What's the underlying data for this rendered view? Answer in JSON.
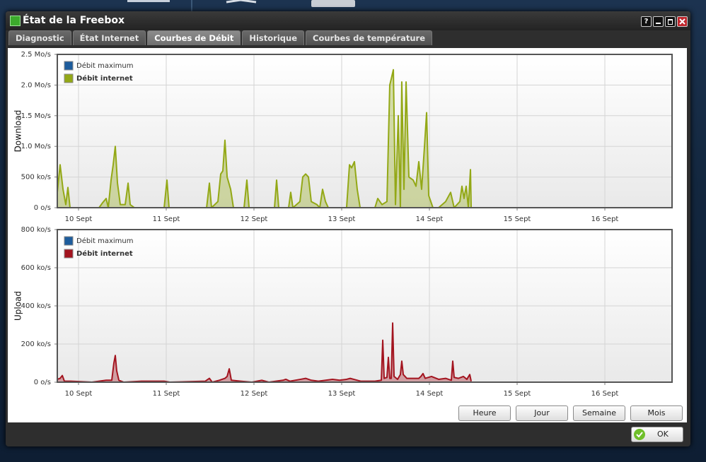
{
  "window": {
    "title": "État de la Freebox",
    "help": "?"
  },
  "tabs": [
    {
      "label": "Diagnostic",
      "active": false
    },
    {
      "label": "État Internet",
      "active": false
    },
    {
      "label": "Courbes de Débit",
      "active": true
    },
    {
      "label": "Historique",
      "active": false
    },
    {
      "label": "Courbes de température",
      "active": false
    }
  ],
  "buttons": [
    "Heure",
    "Jour",
    "Semaine",
    "Mois"
  ],
  "ok_button": "OK",
  "chart_data": [
    {
      "type": "area",
      "ylabel": "Download",
      "grid": true,
      "legend": "upper left",
      "xlim": [
        9.758,
        16.766
      ],
      "ylim": [
        0,
        2500
      ],
      "xticks": [
        {
          "value": 10,
          "label": "10 Sept"
        },
        {
          "value": 11,
          "label": "11 Sept"
        },
        {
          "value": 12,
          "label": "12 Sept"
        },
        {
          "value": 13,
          "label": "13 Sept"
        },
        {
          "value": 14,
          "label": "14 Sept"
        },
        {
          "value": 15,
          "label": "15 Sept"
        },
        {
          "value": 16,
          "label": "16 Sept"
        }
      ],
      "yticks": [
        {
          "value": 0,
          "label": "0 o/s"
        },
        {
          "value": 500,
          "label": "500 ko/s"
        },
        {
          "value": 1000,
          "label": "1.0 Mo/s"
        },
        {
          "value": 1500,
          "label": "1.5 Mo/s"
        },
        {
          "value": 2000,
          "label": "2.0 Mo/s"
        },
        {
          "value": 2500,
          "label": "2.5 Mo/s"
        }
      ],
      "x": [
        9.758,
        9.79,
        9.823,
        9.855,
        9.879,
        9.903,
        10.234,
        10.274,
        10.315,
        10.339,
        10.371,
        10.395,
        10.419,
        10.444,
        10.476,
        10.532,
        10.565,
        10.589,
        10.637,
        10.976,
        11.008,
        11.032,
        11.46,
        11.492,
        11.516,
        11.589,
        11.621,
        11.645,
        11.669,
        11.694,
        11.734,
        11.766,
        11.887,
        11.919,
        11.944,
        12.234,
        12.258,
        12.282,
        12.395,
        12.419,
        12.444,
        12.524,
        12.556,
        12.589,
        12.621,
        12.653,
        12.718,
        12.75,
        12.782,
        12.815,
        12.847,
        13.056,
        13.089,
        13.113,
        13.145,
        13.177,
        13.21,
        13.379,
        13.411,
        13.46,
        13.516,
        13.548,
        13.565,
        13.589,
        13.613,
        13.645,
        13.669,
        13.685,
        13.71,
        13.734,
        13.766,
        13.815,
        13.847,
        13.879,
        13.911,
        13.944,
        13.968,
        13.992,
        14.04,
        14.105,
        14.185,
        14.242,
        14.282,
        14.347,
        14.371,
        14.395,
        14.419,
        14.444,
        14.468,
        14.476
      ],
      "series": [
        {
          "name": "Débit maximum",
          "color": "#1d5c9c",
          "values": [
            null,
            null,
            null,
            null,
            null,
            null,
            null,
            null,
            null,
            null,
            null,
            null,
            null,
            null,
            null,
            null,
            null,
            null,
            null,
            null,
            null,
            null,
            null,
            null,
            null,
            null,
            null,
            null,
            null,
            null,
            null,
            null,
            null,
            null,
            null,
            null,
            null,
            null,
            null,
            null,
            null,
            null,
            null,
            null,
            null,
            null,
            null,
            null,
            null,
            null,
            null,
            null,
            null,
            null,
            null,
            null,
            null,
            null,
            null,
            null,
            null,
            null,
            null,
            null,
            null,
            null,
            null,
            null,
            null,
            null,
            null,
            null,
            null,
            null,
            null,
            null,
            null,
            null,
            null,
            null,
            null,
            null,
            null,
            null,
            null,
            null,
            null,
            null,
            null,
            null
          ]
        },
        {
          "name": "Débit internet",
          "color": "#93a816",
          "values": [
            250,
            700,
            300,
            50,
            330,
            0,
            0,
            80,
            150,
            0,
            450,
            700,
            1000,
            400,
            50,
            50,
            400,
            50,
            0,
            0,
            450,
            0,
            0,
            400,
            0,
            100,
            550,
            600,
            1100,
            500,
            300,
            0,
            0,
            450,
            0,
            0,
            450,
            0,
            0,
            250,
            0,
            100,
            500,
            550,
            500,
            100,
            50,
            0,
            300,
            100,
            0,
            0,
            700,
            650,
            750,
            300,
            0,
            0,
            150,
            50,
            100,
            2000,
            2100,
            2250,
            50,
            1500,
            0,
            2050,
            300,
            2050,
            500,
            450,
            350,
            750,
            300,
            1000,
            1550,
            200,
            0,
            0,
            100,
            250,
            0,
            100,
            350,
            150,
            350,
            0,
            620,
            0
          ]
        }
      ]
    },
    {
      "type": "area",
      "ylabel": "Upload",
      "grid": true,
      "legend": "upper left",
      "xlim": [
        9.758,
        16.766
      ],
      "ylim": [
        0,
        800
      ],
      "xticks": [
        {
          "value": 10,
          "label": "10 Sept"
        },
        {
          "value": 11,
          "label": "11 Sept"
        },
        {
          "value": 12,
          "label": "12 Sept"
        },
        {
          "value": 13,
          "label": "13 Sept"
        },
        {
          "value": 14,
          "label": "14 Sept"
        },
        {
          "value": 15,
          "label": "15 Sept"
        },
        {
          "value": 16,
          "label": "16 Sept"
        }
      ],
      "yticks": [
        {
          "value": 0,
          "label": "0 o/s"
        },
        {
          "value": 200,
          "label": "200 ko/s"
        },
        {
          "value": 400,
          "label": "400 ko/s"
        },
        {
          "value": 600,
          "label": "600 ko/s"
        },
        {
          "value": 800,
          "label": "800 ko/s"
        }
      ],
      "x": [
        9.758,
        9.79,
        9.815,
        9.839,
        9.911,
        10.153,
        10.315,
        10.379,
        10.403,
        10.419,
        10.435,
        10.46,
        10.516,
        10.718,
        10.976,
        11.04,
        11.444,
        11.492,
        11.524,
        11.605,
        11.669,
        11.694,
        11.718,
        11.742,
        11.847,
        11.976,
        12.089,
        12.169,
        12.331,
        12.363,
        12.411,
        12.532,
        12.589,
        12.653,
        12.734,
        12.895,
        12.976,
        13.056,
        13.097,
        13.137,
        13.218,
        13.379,
        13.452,
        13.468,
        13.484,
        13.516,
        13.532,
        13.548,
        13.565,
        13.581,
        13.597,
        13.637,
        13.669,
        13.685,
        13.702,
        13.742,
        13.823,
        13.879,
        13.903,
        13.927,
        13.952,
        14.024,
        14.105,
        14.185,
        14.25,
        14.266,
        14.282,
        14.331,
        14.387,
        14.427,
        14.46,
        14.476
      ],
      "series": [
        {
          "name": "Débit maximum",
          "color": "#1d5c9c",
          "values": [
            null,
            null,
            null,
            null,
            null,
            null,
            null,
            null,
            null,
            null,
            null,
            null,
            null,
            null,
            null,
            null,
            null,
            null,
            null,
            null,
            null,
            null,
            null,
            null,
            null,
            null,
            null,
            null,
            null,
            null,
            null,
            null,
            null,
            null,
            null,
            null,
            null,
            null,
            null,
            null,
            null,
            null,
            null,
            null,
            null,
            null,
            null,
            null,
            null,
            null,
            null,
            null,
            null,
            null,
            null,
            null,
            null,
            null,
            null,
            null,
            null,
            null,
            null,
            null,
            null,
            null,
            null,
            null,
            null,
            null,
            null,
            null
          ]
        },
        {
          "name": "Débit internet",
          "color": "#a3141f",
          "values": [
            15,
            20,
            35,
            5,
            5,
            0,
            10,
            10,
            100,
            140,
            60,
            10,
            0,
            5,
            5,
            0,
            5,
            20,
            0,
            10,
            20,
            30,
            70,
            10,
            5,
            0,
            10,
            0,
            10,
            15,
            5,
            15,
            20,
            10,
            5,
            15,
            10,
            15,
            20,
            15,
            5,
            5,
            10,
            220,
            20,
            25,
            130,
            20,
            20,
            310,
            30,
            15,
            40,
            110,
            40,
            20,
            20,
            20,
            30,
            45,
            20,
            30,
            15,
            20,
            10,
            110,
            25,
            20,
            30,
            15,
            40,
            5
          ]
        }
      ]
    }
  ]
}
